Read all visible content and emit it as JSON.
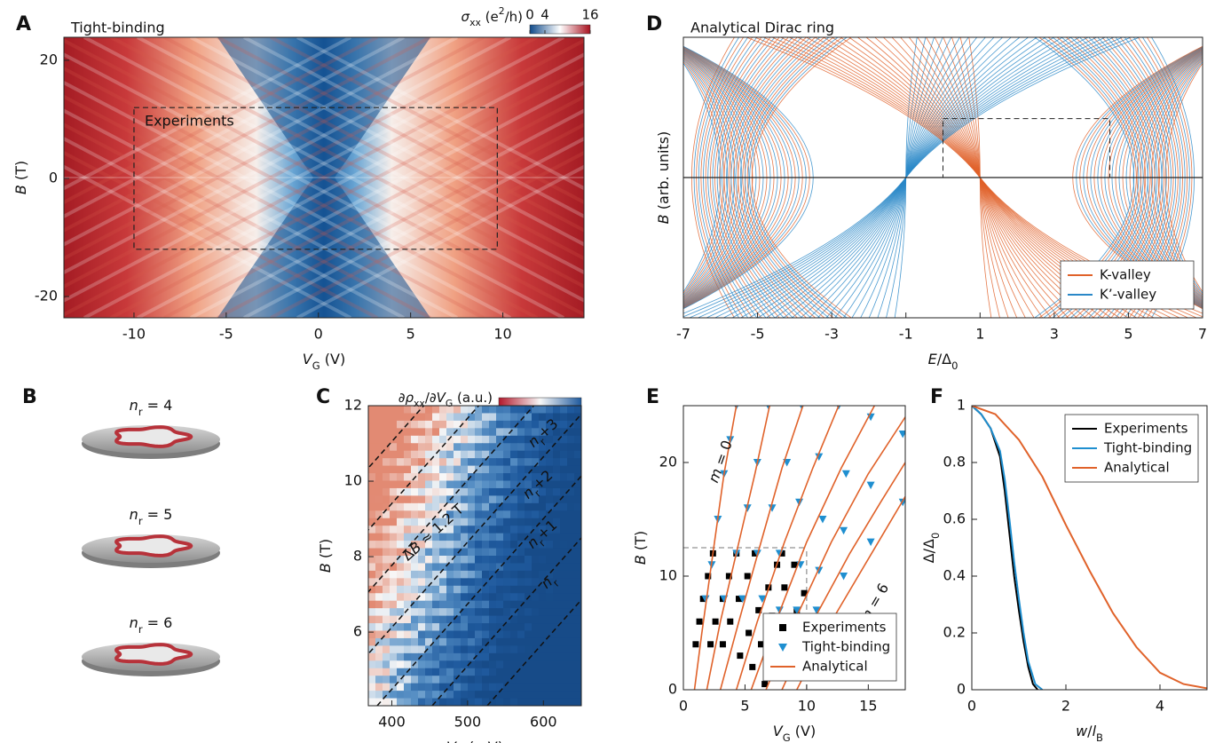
{
  "chart_data": [
    {
      "type": "heatmap",
      "panel": "A",
      "title": "Tight-binding",
      "annotation": "Experiments",
      "xlabel": [
        {
          "i": "V"
        },
        {
          "sub": "G"
        },
        {
          "t": " (V)"
        }
      ],
      "ylabel": [
        {
          "i": "B"
        },
        {
          "t": " (T)"
        }
      ],
      "xlim": [
        -13.8,
        14.4
      ],
      "xticks": [
        -10,
        -5,
        0,
        5,
        10
      ],
      "ylim": [
        -23.6,
        23.9
      ],
      "yticks": [
        -20,
        0,
        20
      ],
      "box": {
        "x": [
          -10,
          9.7
        ],
        "y": [
          -12,
          12
        ]
      },
      "colorbar": {
        "label": [
          {
            "i": "σ"
          },
          {
            "sub": "xx"
          },
          {
            "t": " (e"
          },
          {
            "sup": "2"
          },
          {
            "t": "/h)"
          }
        ],
        "lim": [
          0,
          16
        ],
        "ticks": [
          0,
          4,
          16
        ],
        "colors": [
          "#0f4a8a",
          "#ffffff",
          "#a8101e"
        ]
      }
    },
    {
      "type": "fan",
      "panel": "D",
      "title": "Analytical Dirac ring",
      "xlabel": [
        {
          "i": "E"
        },
        {
          "t": "/Δ"
        },
        {
          "sub": "0"
        }
      ],
      "ylabel": [
        {
          "i": "B"
        },
        {
          "t": " (arb. units)"
        }
      ],
      "xlim": [
        -7,
        7
      ],
      "xticks": [
        -7,
        -5,
        -3,
        -1,
        1,
        3,
        5,
        7
      ],
      "series": [
        {
          "name": "K-valley",
          "color": "#e0622a"
        },
        {
          "name": "K’-valley",
          "color": "#2a88c8"
        }
      ],
      "legend": "lower right"
    },
    {
      "type": "image",
      "panel": "B",
      "labels": [
        [
          {
            "i": "n"
          },
          {
            "sub": "r"
          },
          {
            "t": " = 4"
          }
        ],
        [
          {
            "i": "n"
          },
          {
            "sub": "r"
          },
          {
            "t": " = 5"
          }
        ],
        [
          {
            "i": "n"
          },
          {
            "sub": "r"
          },
          {
            "t": " = 6"
          }
        ]
      ]
    },
    {
      "type": "heatmap",
      "panel": "C",
      "xlabel": [
        {
          "i": "V"
        },
        {
          "sub": "G"
        },
        {
          "t": " (mV)"
        }
      ],
      "ylabel": [
        {
          "i": "B"
        },
        {
          "t": " (T)"
        }
      ],
      "xlim": [
        369,
        650
      ],
      "xticks": [
        400,
        500,
        600
      ],
      "ylim": [
        4.05,
        12
      ],
      "yticks": [
        6,
        8,
        10,
        12
      ],
      "colorbar": {
        "label": [
          {
            "t": "∂"
          },
          {
            "i": "ρ"
          },
          {
            "sub": "xx"
          },
          {
            "t": "/∂"
          },
          {
            "i": "V"
          },
          {
            "sub": "G"
          },
          {
            "t": " (a.u.)"
          }
        ],
        "colors": [
          "#b2182b",
          "#f7f7f7",
          "#1f5a9e"
        ]
      },
      "annotations": [
        [
          {
            "t": "Δ"
          },
          {
            "i": "B"
          },
          {
            "t": " ≈ 1.2 T"
          }
        ],
        [
          {
            "i": "n"
          },
          {
            "sub": "r"
          },
          {
            "t": "+3"
          }
        ],
        [
          {
            "i": "n"
          },
          {
            "sub": "r"
          },
          {
            "t": "+2"
          }
        ],
        [
          {
            "i": "n"
          },
          {
            "sub": "r"
          },
          {
            "t": "+1"
          }
        ],
        [
          {
            "i": "n"
          },
          {
            "sub": "r"
          }
        ]
      ]
    },
    {
      "type": "scatter",
      "panel": "E",
      "xlabel": [
        {
          "i": "V"
        },
        {
          "sub": "G"
        },
        {
          "t": " (V)"
        }
      ],
      "ylabel": [
        {
          "i": "B"
        },
        {
          "t": " (T)"
        }
      ],
      "xlim": [
        0,
        18
      ],
      "xticks": [
        0,
        5,
        10,
        15
      ],
      "ylim": [
        0,
        25
      ],
      "yticks": [
        0,
        10,
        20
      ],
      "guides": {
        "x": 10,
        "y": 12.5
      },
      "annotations": [
        [
          {
            "i": "m"
          },
          {
            "t": " = 0"
          }
        ],
        [
          {
            "i": "m"
          },
          {
            "t": " = 6"
          }
        ]
      ],
      "legend": "lower right",
      "series": [
        {
          "name": "Experiments",
          "marker": "square",
          "color": "#000000",
          "x": [
            1.0,
            1.3,
            1.6,
            2.0,
            2.4,
            2.2,
            2.6,
            3.2,
            3.7,
            4.3,
            3.2,
            3.8,
            4.5,
            5.2,
            5.8,
            4.6,
            5.3,
            6.1,
            6.9,
            7.6,
            8.0,
            5.6,
            6.3,
            7.2,
            8.2,
            9.0,
            6.6,
            7.4,
            8.3,
            9.2,
            9.8
          ],
          "values": [
            4,
            6,
            8,
            10,
            12,
            4,
            6,
            8,
            10,
            12,
            4,
            6,
            8,
            10,
            12,
            3,
            5,
            7,
            9,
            11,
            12,
            2,
            4,
            6.5,
            9,
            11,
            0.5,
            3,
            5,
            7,
            8.5
          ]
        },
        {
          "name": "Tight-binding",
          "marker": "triangle",
          "color": "#1f8fd0",
          "x": [
            1.8,
            2.3,
            2.8,
            3.3,
            3.8,
            4.3,
            3.3,
            4.3,
            5.2,
            6.0,
            6.9,
            4.8,
            6.0,
            7.2,
            8.4,
            9.6,
            6.4,
            7.8,
            9.4,
            11.0,
            12.6,
            7.8,
            9.5,
            11.3,
            13.2,
            15.2,
            9.2,
            11.0,
            13.0,
            15.2,
            17.8,
            10.8,
            13.0,
            15.2,
            17.8
          ],
          "values": [
            8,
            11,
            15,
            19,
            22,
            25,
            8,
            12,
            16,
            20,
            25,
            8,
            12,
            16,
            20,
            25,
            8,
            12,
            16.5,
            20.5,
            25,
            7,
            11,
            15,
            19,
            24,
            7,
            10.5,
            14,
            18,
            22.5,
            7,
            10,
            13,
            16.5
          ]
        },
        {
          "name": "Analytical",
          "marker": "line",
          "color": "#e0622a",
          "x": [
            0.9,
            1.5,
            2.4,
            3.3,
            4.3,
            null,
            1.9,
            3.0,
            4.4,
            5.8,
            7.0,
            null,
            3.0,
            4.5,
            6.3,
            8.0,
            9.7,
            null,
            4.3,
            6.0,
            8.2,
            10.5,
            12.6,
            null,
            5.5,
            7.5,
            10.0,
            12.8,
            15.5,
            null,
            6.7,
            9.0,
            12.0,
            15.0,
            18.0,
            null,
            8.0,
            10.5,
            13.5,
            16.0,
            18.0,
            null,
            9.2,
            12.0,
            15.0,
            18.0
          ],
          "values": [
            0,
            5,
            12,
            19,
            25,
            null,
            0,
            6,
            12.5,
            19,
            25,
            null,
            0,
            6,
            13,
            19.5,
            25,
            null,
            0,
            6,
            13,
            19.5,
            25,
            null,
            0,
            6,
            13,
            19.5,
            25,
            null,
            0,
            6,
            13,
            19,
            24,
            null,
            0,
            6,
            12,
            16.5,
            20,
            null,
            0,
            6,
            11.5,
            17
          ]
        }
      ]
    },
    {
      "type": "line",
      "panel": "F",
      "xlabel": [
        {
          "i": "w"
        },
        {
          "t": "/"
        },
        {
          "i": "l"
        },
        {
          "sub": "B"
        }
      ],
      "ylabel": [
        {
          "t": "Δ/Δ"
        },
        {
          "sub": "0"
        }
      ],
      "xlim": [
        0,
        5
      ],
      "xticks": [
        0,
        2,
        4
      ],
      "ylim": [
        0,
        1
      ],
      "yticks": [
        0,
        0.2,
        0.4,
        0.6,
        0.8,
        1
      ],
      "legend": "upper right",
      "series": [
        {
          "name": "Experiments",
          "color": "#000000",
          "x": [
            0,
            0.2,
            0.4,
            0.6,
            0.7,
            0.8,
            0.9,
            1.0,
            1.1,
            1.2,
            1.3,
            1.4
          ],
          "values": [
            1,
            0.97,
            0.92,
            0.82,
            0.7,
            0.55,
            0.4,
            0.28,
            0.17,
            0.08,
            0.02,
            0
          ]
        },
        {
          "name": "Tight-binding",
          "color": "#1f8fd0",
          "x": [
            0,
            0.2,
            0.4,
            0.6,
            0.7,
            0.8,
            0.9,
            1.0,
            1.1,
            1.2,
            1.35,
            1.5
          ],
          "values": [
            1,
            0.97,
            0.92,
            0.84,
            0.74,
            0.6,
            0.45,
            0.32,
            0.2,
            0.1,
            0.02,
            0
          ]
        },
        {
          "name": "Analytical",
          "color": "#e0622a",
          "x": [
            0,
            0.5,
            1,
            1.5,
            2,
            2.5,
            3,
            3.5,
            4,
            4.5,
            5
          ],
          "values": [
            1,
            0.97,
            0.88,
            0.75,
            0.58,
            0.42,
            0.27,
            0.15,
            0.06,
            0.02,
            0.005
          ]
        }
      ]
    }
  ]
}
